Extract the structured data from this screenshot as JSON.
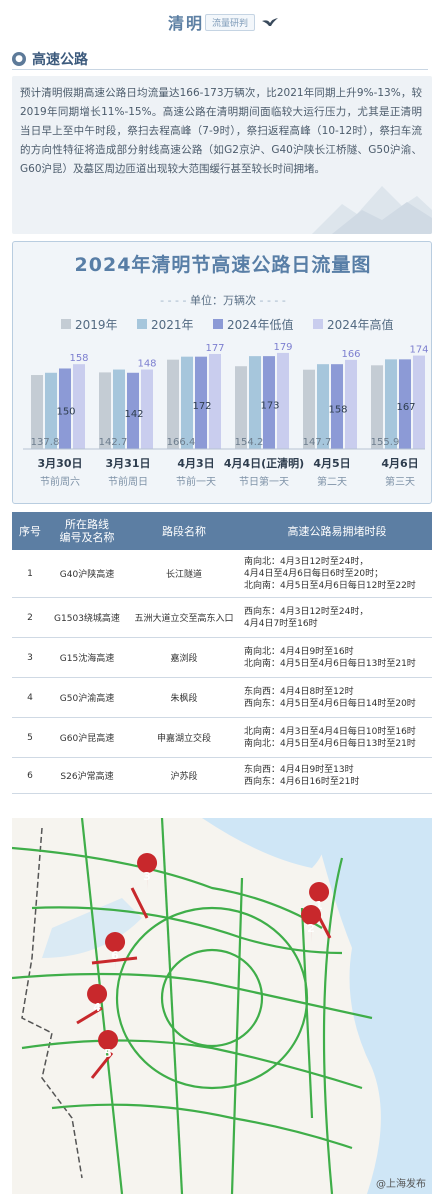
{
  "header": {
    "title": "清明",
    "subtitle": "流量研判"
  },
  "section": {
    "title": "高速公路"
  },
  "intro": {
    "text": "预计清明假期高速公路日均流量达166-173万辆次，比2021年同期上升9%-13%，较2019年同期增长11%-15%。高速公路在清明期间面临较大运行压力，尤其是正清明当日早上至中午时段，祭扫去程高峰（7-9时），祭扫返程高峰（10-12时），祭扫车流的方向性特征将造成部分射线高速公路（如G2京沪、G40沪陕长江桥隧、G50沪渝、G60沪昆）及墓区周边匝道出现较大范围缓行甚至较长时间拥堵。"
  },
  "chart_data": {
    "type": "bar",
    "title": "2024年清明节高速公路日流量图",
    "unit_label": "单位：万辆次",
    "categories": [
      "3月30日",
      "3月31日",
      "4月3日",
      "4月4日(正清明)",
      "4月5日",
      "4月6日"
    ],
    "sublabels": [
      "节前周六",
      "节前周日",
      "节前一天",
      "节日第一天",
      "第二天",
      "第三天"
    ],
    "series": [
      {
        "name": "2019年",
        "values": [
          137.8,
          142.7,
          166.4,
          154.2,
          147.7,
          155.9
        ],
        "color": "#c4ccd4"
      },
      {
        "name": "2021年",
        "values": [
          142,
          148,
          172,
          173,
          158,
          167
        ],
        "color": "#a6c6dc"
      },
      {
        "name": "2024年低值",
        "values": [
          150,
          142,
          172,
          173,
          158,
          167
        ],
        "color": "#8c9ad6"
      },
      {
        "name": "2024年高值",
        "values": [
          158,
          148,
          177,
          179,
          166,
          174
        ],
        "color": "#c9cdee"
      }
    ],
    "data_labels": {
      "top": [
        "158",
        "148",
        "177",
        "179",
        "166",
        "174"
      ],
      "mid": [
        "150",
        "142",
        "172",
        "173",
        "158",
        "167"
      ],
      "bottom": [
        "137.8",
        "142.7",
        "166.4",
        "154.2",
        "147.7",
        "155.9"
      ]
    },
    "ylim": [
      0,
      190
    ]
  },
  "table": {
    "headers": [
      "序号",
      "所在路线\n编号及名称",
      "路段名称",
      "高速公路易拥堵时段"
    ],
    "rows": [
      {
        "no": "1",
        "route": "G40沪陕高速",
        "section": "长江隧道",
        "periods": [
          "南向北：4月3日12时至24时，",
          "4月4日至4月6日每日6时至20时；",
          "北向南：4月5日至4月6日每日12时至22时"
        ]
      },
      {
        "no": "2",
        "route": "G1503绕城高速",
        "section": "五洲大道立交至高东入口",
        "periods": [
          "西向东：4月3日12时至24时，",
          "4月4日7时至16时"
        ]
      },
      {
        "no": "3",
        "route": "G15沈海高速",
        "section": "嘉浏段",
        "periods": [
          "南向北：4月4日9时至16时",
          "北向南：4月5日至4月6日每日13时至21时"
        ]
      },
      {
        "no": "4",
        "route": "G50沪渝高速",
        "section": "朱枫段",
        "periods": [
          "东向西：4月4日8时至12时",
          "西向东：4月5日至4月6日每日14时至20时"
        ]
      },
      {
        "no": "5",
        "route": "G60沪昆高速",
        "section": "申嘉湖立交段",
        "periods": [
          "北向南：4月3日至4月4日每日10时至16时",
          "南向北：4月5日至4月6日每日13时至21时"
        ]
      },
      {
        "no": "6",
        "route": "S26沪常高速",
        "section": "沪苏段",
        "periods": [
          "东向西：4月4日9时至13时",
          "西向东：4月6日16时至21时"
        ]
      }
    ]
  },
  "map": {
    "markers": [
      "1",
      "2",
      "3",
      "4",
      "5",
      "6"
    ],
    "credit": "@上海发布"
  },
  "colors": {
    "accent": "#5c7ea3",
    "marker": "#c8282c",
    "road": "#3fae49"
  }
}
